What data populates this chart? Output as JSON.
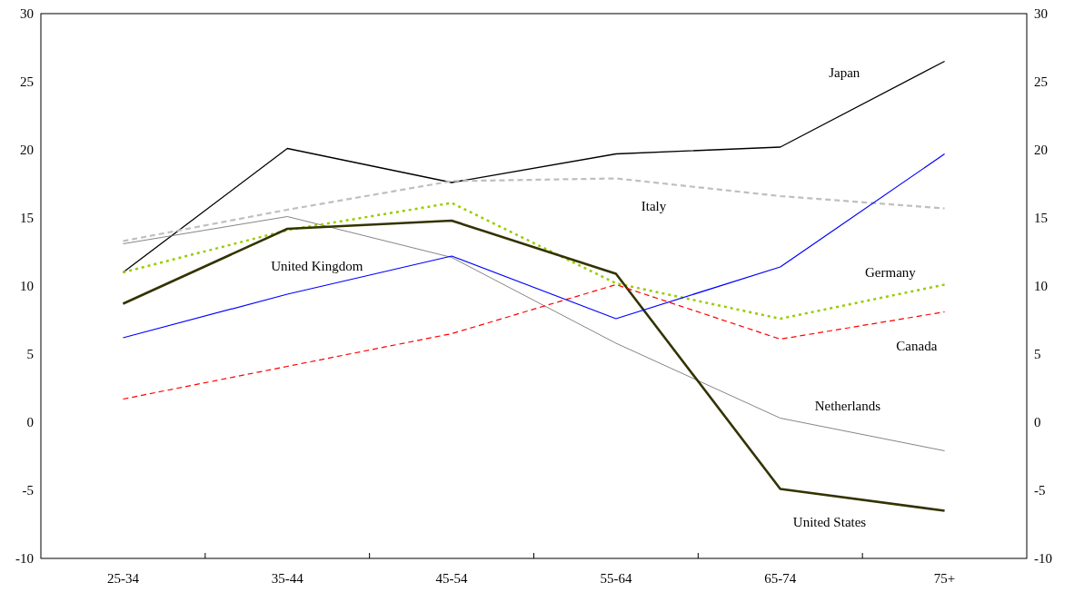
{
  "chart_data": {
    "type": "line",
    "categories": [
      "25-34",
      "35-44",
      "45-54",
      "55-64",
      "65-74",
      "75+"
    ],
    "ylim": [
      -10,
      30
    ],
    "yticks": [
      -10,
      -5,
      0,
      5,
      10,
      15,
      20,
      25,
      30
    ],
    "y2lim": [
      -10,
      30
    ],
    "y2ticks": [
      -10,
      -5,
      0,
      5,
      10,
      15,
      20,
      25,
      30
    ],
    "series": [
      {
        "name": "Japan",
        "color": "#000000",
        "line_style": "solid",
        "values": [
          11.0,
          20.1,
          17.6,
          19.7,
          20.2,
          26.5
        ]
      },
      {
        "name": "Italy",
        "color": "#bfbfbf",
        "line_style": "dashed",
        "values": [
          13.3,
          15.6,
          17.7,
          17.9,
          16.6,
          15.7
        ]
      },
      {
        "name": "Netherlands",
        "color": "#666666",
        "line_style": "solid",
        "values": [
          13.1,
          15.1,
          12.1,
          5.8,
          0.3,
          -2.1
        ]
      },
      {
        "name": "Germany",
        "color": "#99cc00",
        "line_style": "dotted",
        "values": [
          11.0,
          14.1,
          16.1,
          10.2,
          7.6,
          10.1
        ]
      },
      {
        "name": "United States",
        "color": "#333300",
        "line_style": "solid",
        "values": [
          8.7,
          14.2,
          14.8,
          10.9,
          -4.9,
          -6.5
        ]
      },
      {
        "name": "United Kingdom",
        "color": "#0000ff",
        "line_style": "solid",
        "values": [
          6.2,
          9.4,
          12.2,
          7.6,
          11.4,
          19.7
        ]
      },
      {
        "name": "Canada",
        "color": "#ff0000",
        "line_style": "dashed",
        "values": [
          1.7,
          4.1,
          6.5,
          10.1,
          6.1,
          8.1
        ]
      }
    ]
  }
}
